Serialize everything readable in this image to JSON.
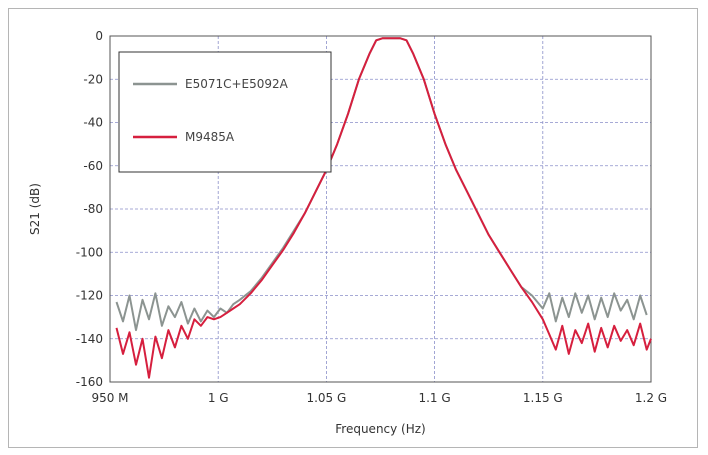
{
  "chart_data": {
    "type": "line",
    "title": "",
    "xlabel": "Frequency (Hz)",
    "ylabel": "S21 (dB)",
    "xlim": [
      950,
      1200
    ],
    "ylim": [
      -160,
      0
    ],
    "x_ticks": [
      {
        "value": 950,
        "label": "950 M"
      },
      {
        "value": 1000,
        "label": "1 G"
      },
      {
        "value": 1050,
        "label": "1.05 G"
      },
      {
        "value": 1100,
        "label": "1.1 G"
      },
      {
        "value": 1150,
        "label": "1.15 G"
      },
      {
        "value": 1200,
        "label": "1.2 G"
      }
    ],
    "y_ticks": [
      {
        "value": 0,
        "label": "0"
      },
      {
        "value": -20,
        "label": "-20"
      },
      {
        "value": -40,
        "label": "-40"
      },
      {
        "value": -60,
        "label": "-60"
      },
      {
        "value": -80,
        "label": "-80"
      },
      {
        "value": -100,
        "label": "-100"
      },
      {
        "value": -120,
        "label": "-120"
      },
      {
        "value": -140,
        "label": "-140"
      },
      {
        "value": -160,
        "label": "-160"
      }
    ],
    "grid": true,
    "legend_position": "top-left",
    "series": [
      {
        "name": "E5071C+E5092A",
        "color": "#8c9491",
        "points": [
          [
            953,
            -123
          ],
          [
            956,
            -132
          ],
          [
            959,
            -120
          ],
          [
            962,
            -136
          ],
          [
            965,
            -122
          ],
          [
            968,
            -131
          ],
          [
            971,
            -119
          ],
          [
            974,
            -134
          ],
          [
            977,
            -125
          ],
          [
            980,
            -130
          ],
          [
            983,
            -123
          ],
          [
            986,
            -133
          ],
          [
            989,
            -126
          ],
          [
            992,
            -132
          ],
          [
            995,
            -127
          ],
          [
            998,
            -130
          ],
          [
            1001,
            -126
          ],
          [
            1004,
            -128
          ],
          [
            1007,
            -124
          ],
          [
            1010,
            -122
          ],
          [
            1015,
            -118
          ],
          [
            1020,
            -112
          ],
          [
            1025,
            -105
          ],
          [
            1030,
            -98
          ],
          [
            1035,
            -90
          ],
          [
            1040,
            -82
          ],
          [
            1045,
            -72
          ],
          [
            1050,
            -62
          ],
          [
            1055,
            -50
          ],
          [
            1060,
            -36
          ],
          [
            1065,
            -20
          ],
          [
            1070,
            -8
          ],
          [
            1073,
            -2
          ],
          [
            1076,
            -1
          ],
          [
            1080,
            -1
          ],
          [
            1084,
            -1
          ],
          [
            1087,
            -2
          ],
          [
            1090,
            -8
          ],
          [
            1095,
            -20
          ],
          [
            1100,
            -36
          ],
          [
            1105,
            -50
          ],
          [
            1110,
            -62
          ],
          [
            1115,
            -72
          ],
          [
            1120,
            -82
          ],
          [
            1125,
            -92
          ],
          [
            1130,
            -100
          ],
          [
            1135,
            -108
          ],
          [
            1140,
            -116
          ],
          [
            1145,
            -120
          ],
          [
            1150,
            -126
          ],
          [
            1153,
            -119
          ],
          [
            1156,
            -132
          ],
          [
            1159,
            -121
          ],
          [
            1162,
            -130
          ],
          [
            1165,
            -119
          ],
          [
            1168,
            -128
          ],
          [
            1171,
            -120
          ],
          [
            1174,
            -131
          ],
          [
            1177,
            -121
          ],
          [
            1180,
            -130
          ],
          [
            1183,
            -119
          ],
          [
            1186,
            -127
          ],
          [
            1189,
            -122
          ],
          [
            1192,
            -131
          ],
          [
            1195,
            -120
          ],
          [
            1198,
            -129
          ]
        ]
      },
      {
        "name": "M9485A",
        "color": "#d61f3e",
        "points": [
          [
            953,
            -135
          ],
          [
            956,
            -147
          ],
          [
            959,
            -137
          ],
          [
            962,
            -152
          ],
          [
            965,
            -140
          ],
          [
            968,
            -158
          ],
          [
            971,
            -139
          ],
          [
            974,
            -149
          ],
          [
            977,
            -136
          ],
          [
            980,
            -144
          ],
          [
            983,
            -134
          ],
          [
            986,
            -140
          ],
          [
            989,
            -131
          ],
          [
            992,
            -134
          ],
          [
            995,
            -130
          ],
          [
            998,
            -131
          ],
          [
            1001,
            -130
          ],
          [
            1004,
            -128
          ],
          [
            1007,
            -126
          ],
          [
            1010,
            -124
          ],
          [
            1015,
            -119
          ],
          [
            1020,
            -113
          ],
          [
            1025,
            -106
          ],
          [
            1030,
            -99
          ],
          [
            1035,
            -91
          ],
          [
            1040,
            -82
          ],
          [
            1045,
            -72
          ],
          [
            1050,
            -62
          ],
          [
            1055,
            -50
          ],
          [
            1060,
            -36
          ],
          [
            1065,
            -20
          ],
          [
            1070,
            -8
          ],
          [
            1073,
            -2
          ],
          [
            1076,
            -1
          ],
          [
            1080,
            -1
          ],
          [
            1084,
            -1
          ],
          [
            1087,
            -2
          ],
          [
            1090,
            -8
          ],
          [
            1095,
            -20
          ],
          [
            1100,
            -36
          ],
          [
            1105,
            -50
          ],
          [
            1110,
            -62
          ],
          [
            1115,
            -72
          ],
          [
            1120,
            -82
          ],
          [
            1125,
            -92
          ],
          [
            1130,
            -100
          ],
          [
            1135,
            -108
          ],
          [
            1140,
            -116
          ],
          [
            1145,
            -123
          ],
          [
            1150,
            -131
          ],
          [
            1153,
            -138
          ],
          [
            1156,
            -145
          ],
          [
            1159,
            -134
          ],
          [
            1162,
            -147
          ],
          [
            1165,
            -136
          ],
          [
            1168,
            -142
          ],
          [
            1171,
            -133
          ],
          [
            1174,
            -146
          ],
          [
            1177,
            -135
          ],
          [
            1180,
            -144
          ],
          [
            1183,
            -134
          ],
          [
            1186,
            -141
          ],
          [
            1189,
            -136
          ],
          [
            1192,
            -143
          ],
          [
            1195,
            -133
          ],
          [
            1198,
            -145
          ],
          [
            1200,
            -140
          ]
        ]
      }
    ]
  }
}
